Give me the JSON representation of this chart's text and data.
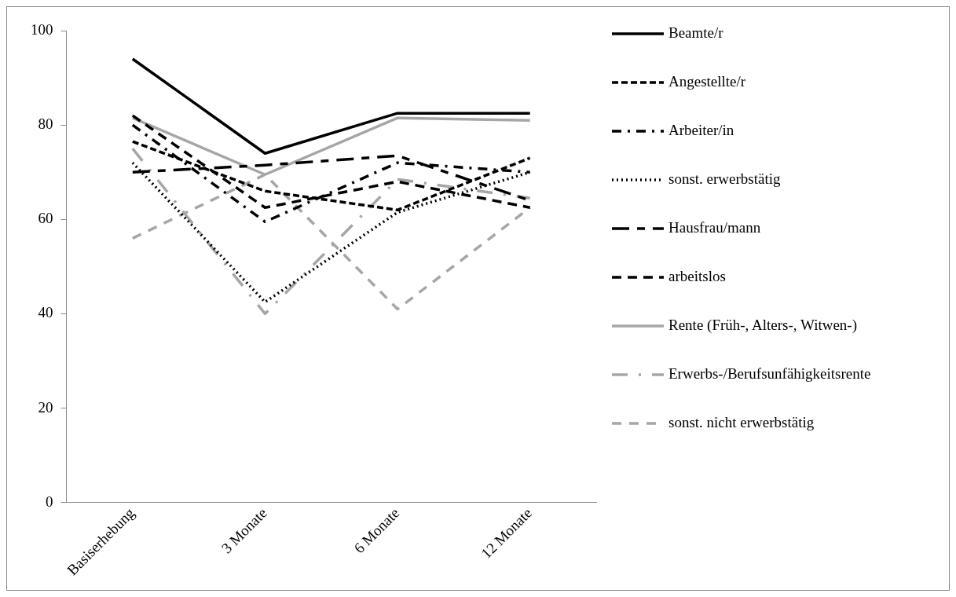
{
  "chart_data": {
    "type": "line",
    "categories": [
      "Basiserhebung",
      "3 Monate",
      "6 Monate",
      "12 Monate"
    ],
    "ylim": [
      0,
      100
    ],
    "yticks": [
      0,
      20,
      40,
      60,
      80,
      100
    ],
    "grid": false,
    "legend": "right",
    "marker": "none",
    "series": [
      {
        "name": "Beamte/r",
        "color": "#000000",
        "line_style": "solid",
        "values": [
          94,
          74,
          82.5,
          82.5
        ]
      },
      {
        "name": "Angestellte/r",
        "color": "#000000",
        "line_style": "dashed",
        "values": [
          76.5,
          66,
          62,
          73
        ]
      },
      {
        "name": "Arbeiter/in",
        "color": "#000000",
        "line_style": "dashed",
        "values": [
          80,
          59.5,
          72,
          70
        ]
      },
      {
        "name": "sonst. erwerbstätig",
        "color": "#000000",
        "line_style": "dotted",
        "values": [
          72,
          42.5,
          61.5,
          70
        ]
      },
      {
        "name": "Hausfrau/mann",
        "color": "#000000",
        "line_style": "dashed",
        "values": [
          70,
          71.5,
          73.5,
          64
        ]
      },
      {
        "name": "arbeitslos",
        "color": "#000000",
        "line_style": "dashed",
        "values": [
          82,
          62.5,
          68,
          62.5
        ]
      },
      {
        "name": "Rente (Früh-, Alters-, Witwen-)",
        "color": "#a6a6a6",
        "line_style": "solid",
        "values": [
          81.5,
          69.5,
          81.5,
          81
        ]
      },
      {
        "name": "Erwerbs-/Berufsunfähigkeitsrente",
        "color": "#a6a6a6",
        "line_style": "dashed",
        "values": [
          75,
          40,
          68.5,
          64.5
        ]
      },
      {
        "name": "sonst. nicht erwerbstätig",
        "color": "#a6a6a6",
        "line_style": "dashed",
        "values": [
          56,
          69.5,
          41,
          62.5
        ]
      }
    ]
  }
}
